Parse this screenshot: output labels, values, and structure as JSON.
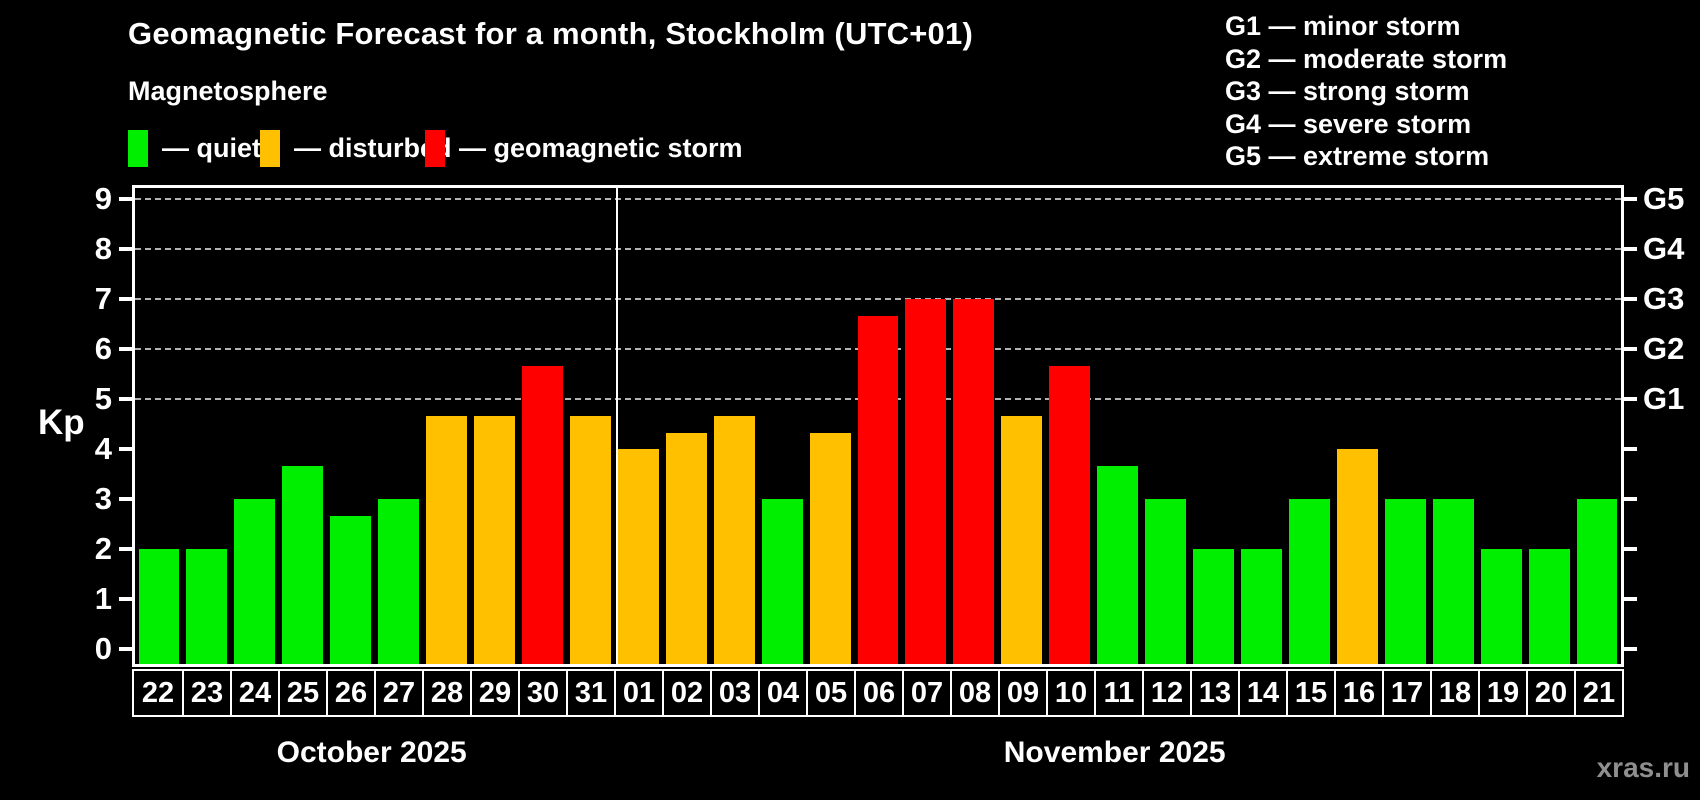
{
  "chart": {
    "title": "Geomagnetic Forecast for a month, Stockholm (UTC+01)",
    "subtitle": "Magnetosphere"
  },
  "colors": {
    "quiet": "#00ee00",
    "disturbed": "#ffc000",
    "storm": "#ff0000",
    "grid": "#b3b3b3",
    "frame": "#ffffff"
  },
  "legend": {
    "items": [
      {
        "key": "quiet",
        "label": "— quiet"
      },
      {
        "key": "disturbed",
        "label": "— disturbed"
      },
      {
        "key": "storm",
        "label": "— geomagnetic storm"
      }
    ]
  },
  "g_legend": {
    "lines": [
      "G1 — minor storm",
      "G2 — moderate storm",
      "G3 — strong storm",
      "G4 — severe storm",
      "G5 — extreme storm"
    ]
  },
  "y_axis": {
    "label": "Kp",
    "ticks": [
      0,
      1,
      2,
      3,
      4,
      5,
      6,
      7,
      8,
      9
    ]
  },
  "right_axis": {
    "labels": {
      "5": "G1",
      "6": "G2",
      "7": "G3",
      "8": "G4",
      "9": "G5"
    }
  },
  "months": [
    {
      "name": "October 2025",
      "days": 10
    },
    {
      "name": "November 2025",
      "days": 21
    }
  ],
  "watermark": "xras.ru",
  "chart_data": {
    "type": "bar",
    "title": "Geomagnetic Forecast for a month, Stockholm (UTC+01)",
    "xlabel": "",
    "ylabel": "Kp",
    "ylim": [
      0,
      9
    ],
    "grid": "dashed horizontal lines at Kp 5-9 (G1-G5)",
    "legend_position": "top-left",
    "categories": [
      "22",
      "23",
      "24",
      "25",
      "26",
      "27",
      "28",
      "29",
      "30",
      "31",
      "01",
      "02",
      "03",
      "04",
      "05",
      "06",
      "07",
      "08",
      "09",
      "10",
      "11",
      "12",
      "13",
      "14",
      "15",
      "16",
      "17",
      "18",
      "19",
      "20",
      "21"
    ],
    "values": [
      2.0,
      2.0,
      3.0,
      3.67,
      2.67,
      3.0,
      4.67,
      4.67,
      5.67,
      4.67,
      4.0,
      4.33,
      4.67,
      3.0,
      4.33,
      6.67,
      7.0,
      7.0,
      4.67,
      5.67,
      3.67,
      3.0,
      2.0,
      2.0,
      3.0,
      4.0,
      3.0,
      3.0,
      2.0,
      2.0,
      3.0
    ],
    "status": [
      "quiet",
      "quiet",
      "quiet",
      "quiet",
      "quiet",
      "quiet",
      "disturbed",
      "disturbed",
      "storm",
      "disturbed",
      "disturbed",
      "disturbed",
      "disturbed",
      "quiet",
      "disturbed",
      "storm",
      "storm",
      "storm",
      "disturbed",
      "storm",
      "quiet",
      "quiet",
      "quiet",
      "quiet",
      "quiet",
      "disturbed",
      "quiet",
      "quiet",
      "quiet",
      "quiet",
      "quiet"
    ],
    "g_thresholds": {
      "G1": 5,
      "G2": 6,
      "G3": 7,
      "G4": 8,
      "G5": 9
    }
  }
}
